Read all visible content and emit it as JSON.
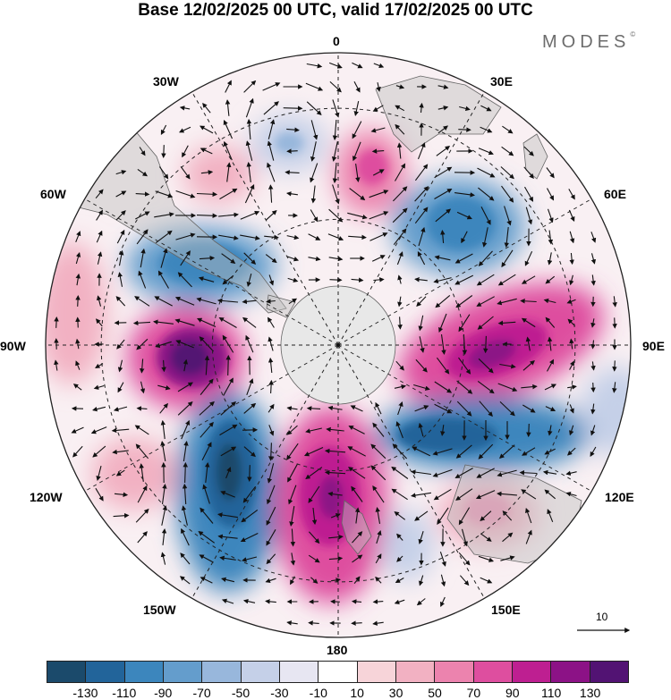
{
  "title": "Base 12/02/2025 00 UTC, valid 17/02/2025 00 UTC",
  "brand": "MODES",
  "brand_mark": "©",
  "longitude_labels": {
    "lon_0": "0",
    "lon_30e": "30E",
    "lon_60e": "60E",
    "lon_90e": "90E",
    "lon_120e": "120E",
    "lon_150e": "150E",
    "lon_180": "180",
    "lon_150w": "150W",
    "lon_120w": "120W",
    "lon_90w": "90W",
    "lon_60w": "60W",
    "lon_30w": "30W"
  },
  "reference_vector_label": "10",
  "colorbar": {
    "colors": [
      "#1b4a6b",
      "#22649a",
      "#3c86bd",
      "#649dcc",
      "#98b7dc",
      "#c5d0e8",
      "#e7e6f2",
      "#ffffff",
      "#f7d4d9",
      "#f2b1c2",
      "#ec83ae",
      "#de4e9f",
      "#be1f91",
      "#8c1286",
      "#521373"
    ],
    "tick_labels": [
      "-130",
      "-110",
      "-90",
      "-70",
      "-50",
      "-30",
      "-10",
      "10",
      "30",
      "50",
      "70",
      "90",
      "110",
      "130"
    ]
  },
  "anomaly_centers": [
    {
      "sign": "negative",
      "lon_deg": 20,
      "level": 3
    },
    {
      "sign": "positive",
      "lon_deg": 40,
      "level": 3
    },
    {
      "sign": "positive",
      "lon_deg": -30,
      "level": 2
    },
    {
      "sign": "negative",
      "lon_deg": 60,
      "level": 5
    },
    {
      "sign": "negative",
      "lon_deg": -65,
      "level": 5
    },
    {
      "sign": "positive",
      "lon_deg": -90,
      "level": 9
    },
    {
      "sign": "positive",
      "lon_deg": 100,
      "level": 7
    },
    {
      "sign": "negative",
      "lon_deg": 115,
      "level": 6
    },
    {
      "sign": "positive",
      "lon_deg": 140,
      "level": 2
    },
    {
      "sign": "negative",
      "lon_deg": -150,
      "level": 7
    },
    {
      "sign": "positive",
      "lon_deg": 170,
      "level": 7
    },
    {
      "sign": "positive",
      "lon_deg": -125,
      "level": 3
    }
  ]
}
